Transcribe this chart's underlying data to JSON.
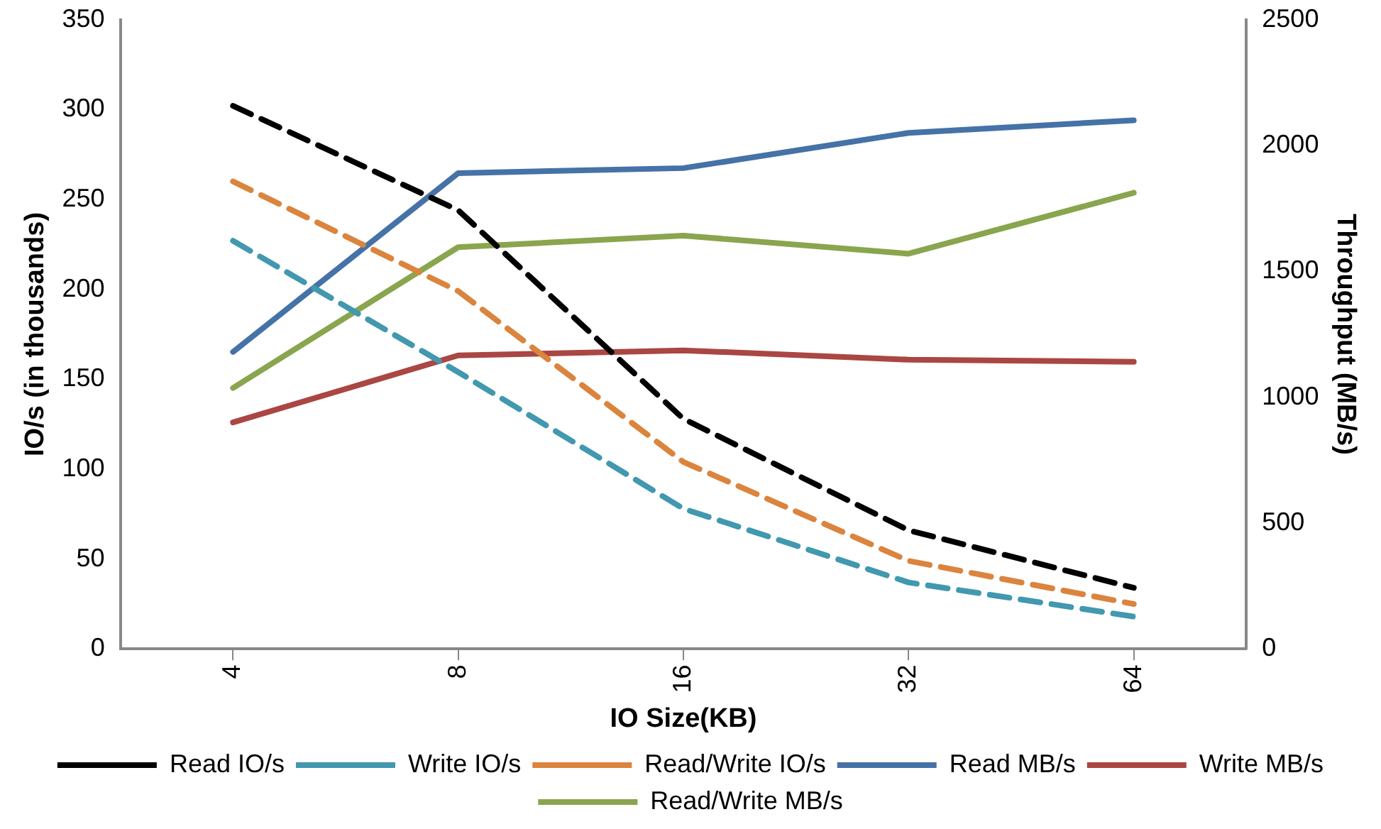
{
  "chart_data": {
    "type": "line",
    "xlabel": "IO Size(KB)",
    "ylabel": "IO/s (in thousands)",
    "y2label": "Throughput (MB/s)",
    "categories": [
      "4",
      "8",
      "16",
      "32",
      "64"
    ],
    "ylim": [
      0,
      350
    ],
    "yticks": [
      0,
      50,
      100,
      150,
      200,
      250,
      300,
      350
    ],
    "y2lim": [
      0,
      2500
    ],
    "y2ticks": [
      0,
      500,
      1000,
      1500,
      2000,
      2500
    ],
    "grid": false,
    "legend": "bottom",
    "marker": "none",
    "series": [
      {
        "name": "Read IO/s",
        "color": "#000000",
        "line_style": "dashed",
        "values": [
          302,
          244,
          128,
          66,
          34
        ]
      },
      {
        "name": "Write IO/s",
        "color": "#4198af",
        "line_style": "dashed",
        "values": [
          227,
          154,
          78,
          37,
          18
        ]
      },
      {
        "name": "Read/Write IO/s",
        "color": "#db843d",
        "line_style": "dashed",
        "values": [
          260,
          199,
          104,
          49,
          25
        ]
      },
      {
        "name": "Read MB/s",
        "color": "#4572a7",
        "axis": "y2",
        "values": [
          1180,
          1890,
          1910,
          2050,
          2100
        ]
      },
      {
        "name": "Write MB/s",
        "color": "#aa4643",
        "axis": "y2",
        "values": [
          900,
          1166,
          1186,
          1149,
          1141
        ]
      },
      {
        "name": "Read/Write MB/s",
        "color": "#89a54e",
        "axis": "y2",
        "values": [
          1037,
          1596,
          1642,
          1570,
          1812
        ]
      }
    ]
  }
}
